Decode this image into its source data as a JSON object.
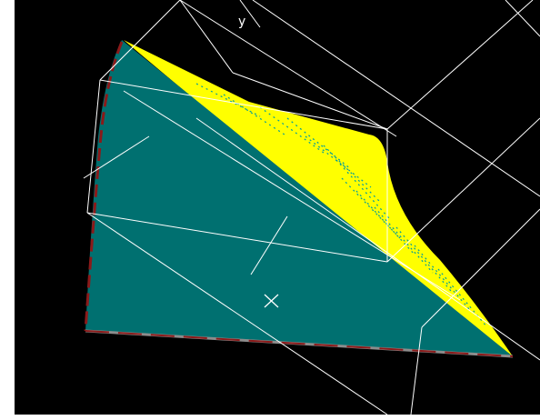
{
  "viewport": {
    "background": "#000000",
    "axis_label_y": "y",
    "colors": {
      "surface_front": "#007070",
      "surface_back": "#ffff00",
      "edge_dash": "#8b1a1a",
      "edge_gray": "#8c8c8c",
      "wireframe": "#ffffff"
    },
    "icons": [
      "origin-cross-icon"
    ]
  }
}
